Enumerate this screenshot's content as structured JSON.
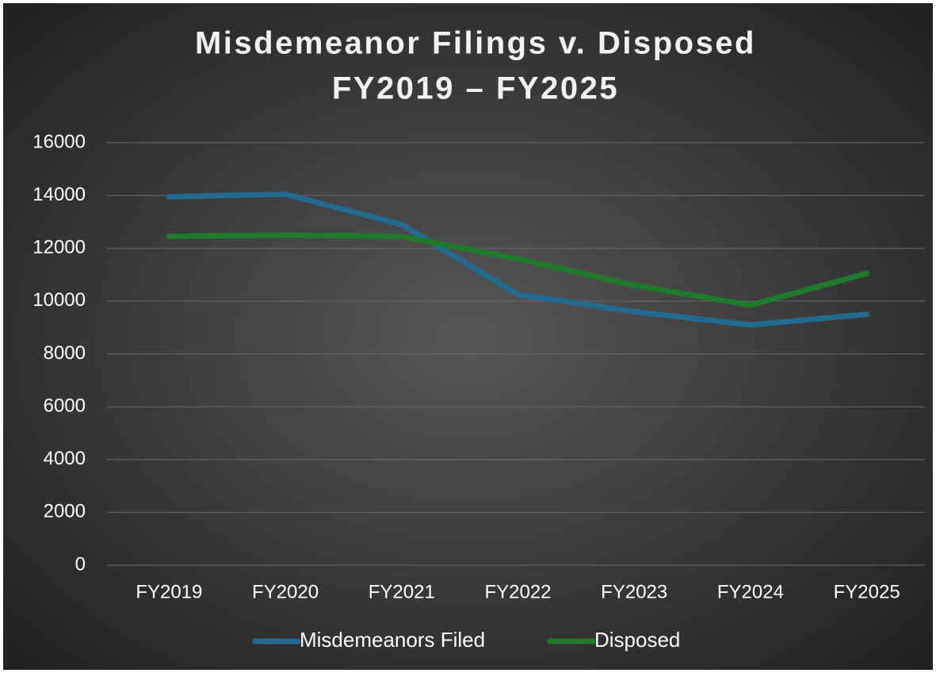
{
  "chart_data": {
    "type": "line",
    "title": [
      "Misdemeanor Filings v. Disposed",
      "FY2019 – FY2025"
    ],
    "categories": [
      "FY2019",
      "FY2020",
      "FY2021",
      "FY2022",
      "FY2023",
      "FY2024",
      "FY2025"
    ],
    "series": [
      {
        "name": "Misdemeanors Filed",
        "color": "#226a8e",
        "values": [
          13950,
          14050,
          12900,
          10250,
          9600,
          9100,
          9500
        ]
      },
      {
        "name": "Disposed",
        "color": "#1f7a2c",
        "values": [
          12450,
          12500,
          12450,
          11600,
          10600,
          9850,
          11050
        ]
      }
    ],
    "ylim": [
      0,
      16000
    ],
    "yticks": [
      0,
      2000,
      4000,
      6000,
      8000,
      10000,
      12000,
      14000,
      16000
    ],
    "grid": true,
    "legend": "bottom"
  }
}
